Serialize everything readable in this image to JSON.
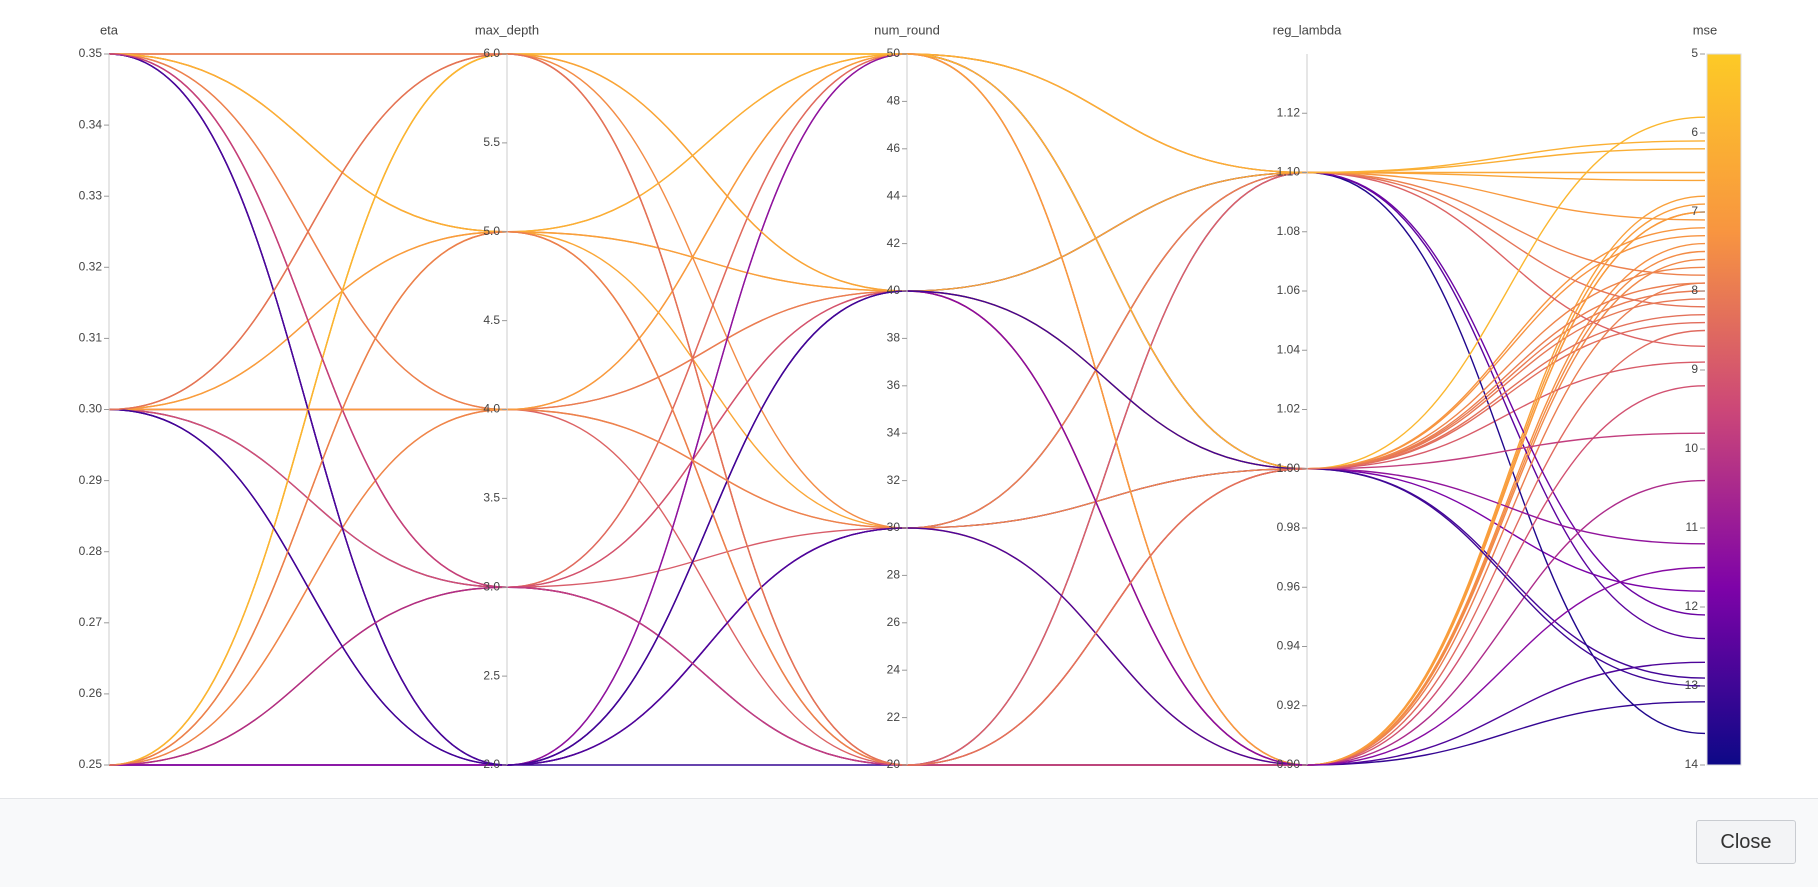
{
  "chart_data": {
    "type": "parallel",
    "colorscale": [
      "#0d0887",
      "#7e03a8",
      "#cc4778",
      "#f89540",
      "#fdca26"
    ],
    "dimensions": [
      {
        "label": "eta",
        "ylim": [
          0.25,
          0.35
        ],
        "ticks": [
          0.25,
          0.26,
          0.27,
          0.28,
          0.29,
          {
            "value": 0.3,
            "label": "0.30"
          },
          0.31,
          0.32,
          0.33,
          0.34,
          0.35
        ],
        "values": [
          0.35,
          0.35,
          0.3,
          0.25,
          0.25,
          0.35,
          0.3,
          0.25,
          0.35,
          0.25,
          0.3,
          0.35,
          0.25,
          0.3,
          0.25,
          0.35,
          0.3,
          0.25,
          0.35,
          0.3,
          0.25,
          0.35,
          0.3,
          0.25,
          0.35,
          0.3,
          0.25,
          0.35,
          0.3,
          0.25,
          0.35,
          0.3,
          0.25,
          0.35,
          0.3,
          0.25,
          0.35,
          0.3,
          0.25,
          0.3
        ]
      },
      {
        "label": "max_depth",
        "ylim": [
          2,
          6
        ],
        "ticks": [
          {
            "value": 2,
            "label": "2.0"
          },
          2.5,
          {
            "value": 3,
            "label": "3.0"
          },
          3.5,
          {
            "value": 4,
            "label": "4.0"
          },
          4.5,
          {
            "value": 5,
            "label": "5.0"
          },
          5.5,
          {
            "value": 6,
            "label": "6.0"
          }
        ],
        "values": [
          2,
          6,
          4,
          5,
          3,
          5,
          2,
          6,
          3,
          4,
          3,
          4,
          2,
          5,
          6,
          2,
          6,
          3,
          5,
          4,
          5,
          3,
          2,
          4,
          6,
          3,
          2,
          4,
          5,
          6,
          2,
          6,
          3,
          5,
          4,
          2,
          3,
          2,
          5,
          6
        ]
      },
      {
        "label": "num_round",
        "ylim": [
          20,
          50
        ],
        "ticks": [
          20,
          22,
          24,
          26,
          28,
          30,
          32,
          34,
          36,
          38,
          40,
          42,
          44,
          46,
          48,
          50
        ],
        "values": [
          20,
          50,
          40,
          30,
          40,
          20,
          50,
          40,
          30,
          50,
          20,
          40,
          30,
          50,
          20,
          40,
          30,
          50,
          40,
          20,
          40,
          50,
          30,
          30,
          20,
          40,
          50,
          30,
          20,
          50,
          30,
          40,
          20,
          50,
          50,
          40,
          20,
          40,
          20,
          20
        ]
      },
      {
        "label": "reg_lambda",
        "ylim": [
          0.9,
          1.14
        ],
        "ticks": [
          {
            "value": 0.9,
            "label": "0.90"
          },
          0.92,
          0.94,
          0.96,
          0.98,
          {
            "value": 1,
            "label": "1.00"
          },
          1.02,
          1.04,
          1.06,
          1.08,
          {
            "value": 1.1,
            "label": "1.10"
          },
          1.12
        ],
        "values": [
          0.9,
          1.1,
          1,
          1.1,
          1,
          0.9,
          1,
          1.1,
          1,
          0.9,
          1.1,
          0.9,
          1,
          1,
          0.9,
          1.1,
          0.9,
          1.1,
          1,
          1.1,
          0.9,
          0.9,
          1.1,
          1,
          1,
          0.9,
          1,
          1.1,
          0.9,
          1,
          0.9,
          1.1,
          0.9,
          1.1,
          0.9,
          0.9,
          1,
          1,
          1,
          1
        ]
      },
      {
        "label": "mse",
        "ylim": [
          14,
          5
        ],
        "ticks": [
          5,
          6,
          7,
          8,
          9,
          10,
          11,
          12,
          13,
          14
        ],
        "values": [
          13.2,
          7.1,
          8.4,
          6.5,
          8,
          7.6,
          11.8,
          6.2,
          8.9,
          7.4,
          12.4,
          7.9,
          12.9,
          7.3,
          7,
          13.6,
          7.5,
          8.2,
          7.2,
          8.7,
          6.8,
          8.5,
          12.1,
          7.7,
          8.1,
          9.2,
          11.2,
          7.8,
          6.9,
          5.8,
          12.7,
          6.6,
          10.4,
          6.1,
          7,
          11.5,
          9.8,
          13,
          7.9,
          8.3
        ]
      }
    ]
  },
  "footer": {
    "button": "Close"
  }
}
